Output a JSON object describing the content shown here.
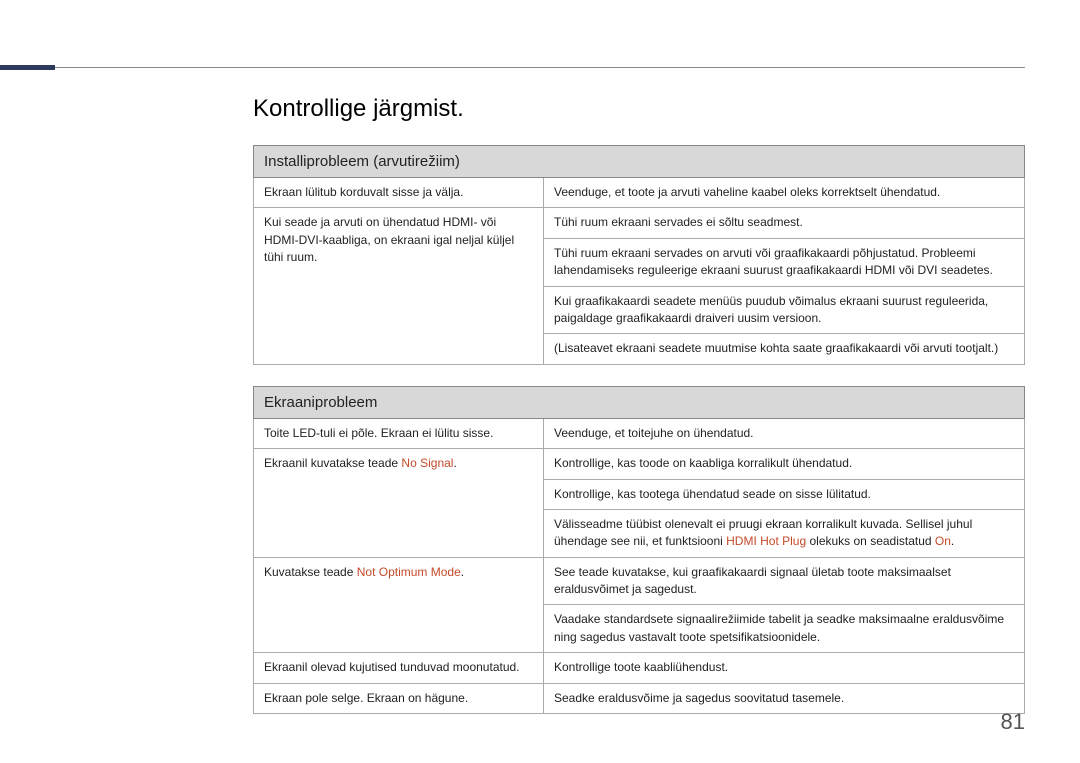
{
  "page": {
    "title": "Kontrollige järgmist.",
    "number": "81"
  },
  "colors": {
    "accent": "#2e3a5c",
    "section_bg": "#d8d8d8",
    "highlight": "#c44a2a"
  },
  "section1": {
    "header": "Installiprobleem (arvutirežiim)",
    "r1c1": "Ekraan lülitub korduvalt sisse ja välja.",
    "r1c2": "Veenduge, et toote ja arvuti vaheline kaabel oleks korrektselt ühendatud.",
    "r2c1": "Kui seade ja arvuti on ühendatud HDMI- või HDMI-DVI-kaabliga, on ekraani igal neljal küljel tühi ruum.",
    "r2c2": "Tühi ruum ekraani servades ei sõltu seadmest.",
    "r3c2": "Tühi ruum ekraani servades on arvuti või graafikakaardi põhjustatud. Probleemi lahendamiseks reguleerige ekraani suurust graafikakaardi HDMI või DVI seadetes.",
    "r4c2": "Kui graafikakaardi seadete menüüs puudub võimalus ekraani suurust reguleerida, paigaldage graafikakaardi draiveri uusim versioon.",
    "r5c2": "(Lisateavet ekraani seadete muutmise kohta saate graafikakaardi või arvuti tootjalt.)"
  },
  "section2": {
    "header": "Ekraaniprobleem",
    "r1c1": "Toite LED-tuli ei põle. Ekraan ei lülitu sisse.",
    "r1c2": "Veenduge, et toitejuhe on ühendatud.",
    "r2c1_a": "Ekraanil kuvatakse teade ",
    "r2c1_b": "No Signal",
    "r2c1_c": ".",
    "r2c2": "Kontrollige, kas toode on kaabliga korralikult ühendatud.",
    "r3c2": "Kontrollige, kas tootega ühendatud seade on sisse lülitatud.",
    "r4c2_a": "Välisseadme tüübist olenevalt ei pruugi ekraan korralikult kuvada. Sellisel juhul ühendage see nii, et funktsiooni ",
    "r4c2_b": "HDMI Hot Plug",
    "r4c2_c": " olekuks on seadistatud ",
    "r4c2_d": "On",
    "r4c2_e": ".",
    "r5c1_a": "Kuvatakse teade ",
    "r5c1_b": "Not Optimum Mode",
    "r5c1_c": ".",
    "r5c2": "See teade kuvatakse, kui graafikakaardi signaal ületab toote maksimaalset eraldusvõimet ja sagedust.",
    "r6c2": "Vaadake standardsete signaalirežiimide tabelit ja seadke maksimaalne eraldusvõime ning sagedus vastavalt toote spetsifikatsioonidele.",
    "r7c1": "Ekraanil olevad kujutised tunduvad moonutatud.",
    "r7c2": "Kontrollige toote kaabliühendust.",
    "r8c1": "Ekraan pole selge. Ekraan on hägune.",
    "r8c2": "Seadke eraldusvõime ja sagedus soovitatud tasemele."
  }
}
